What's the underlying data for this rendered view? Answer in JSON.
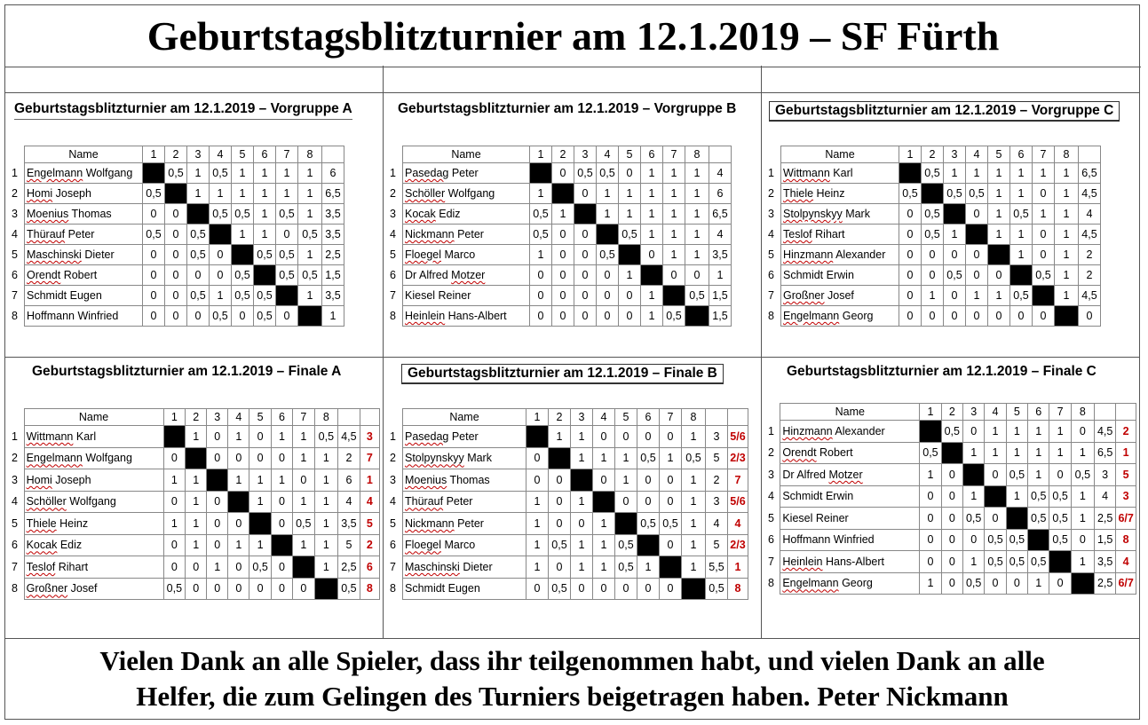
{
  "title": "Geburtstagsblitzturnier am 12.1.2019 – SF Fürth",
  "footer": {
    "line1": "Vielen Dank an alle Spieler, dass ihr teilgenommen habt, und vielen Dank an alle",
    "line2": "Helfer, die zum Gelingen des Turniers beigetragen haben.   Peter Nickmann"
  },
  "tables": [
    {
      "key": "vorgruppe-a",
      "title": "Geburtstagsblitzturnier am 12.1.2019 – Vorgruppe A",
      "name_header": "Name",
      "cols": [
        "1",
        "2",
        "3",
        "4",
        "5",
        "6",
        "7",
        "8"
      ],
      "rows": [
        {
          "n": "1",
          "name": "Engelmann Wolfgang",
          "s": [
            "X",
            "0,5",
            "1",
            "0,5",
            "1",
            "1",
            "1",
            "1"
          ],
          "total": "6",
          "rank": ""
        },
        {
          "n": "2",
          "name": "Homi Joseph",
          "s": [
            "0,5",
            "X",
            "1",
            "1",
            "1",
            "1",
            "1",
            "1"
          ],
          "total": "6,5",
          "rank": ""
        },
        {
          "n": "3",
          "name": "Moenius Thomas",
          "s": [
            "0",
            "0",
            "X",
            "0,5",
            "0,5",
            "1",
            "0,5",
            "1"
          ],
          "total": "3,5",
          "rank": ""
        },
        {
          "n": "4",
          "name": "Thürauf Peter",
          "s": [
            "0,5",
            "0",
            "0,5",
            "X",
            "1",
            "1",
            "0",
            "0,5"
          ],
          "total": "3,5",
          "rank": ""
        },
        {
          "n": "5",
          "name": "Maschinski Dieter",
          "s": [
            "0",
            "0",
            "0,5",
            "0",
            "X",
            "0,5",
            "0,5",
            "1"
          ],
          "total": "2,5",
          "rank": ""
        },
        {
          "n": "6",
          "name": "Orendt Robert",
          "s": [
            "0",
            "0",
            "0",
            "0",
            "0,5",
            "X",
            "0,5",
            "0,5"
          ],
          "total": "1,5",
          "rank": ""
        },
        {
          "n": "7",
          "name": "Schmidt Eugen",
          "s": [
            "0",
            "0",
            "0,5",
            "1",
            "0,5",
            "0,5",
            "X",
            "1"
          ],
          "total": "3,5",
          "rank": ""
        },
        {
          "n": "8",
          "name": "Hoffmann Winfried",
          "s": [
            "0",
            "0",
            "0",
            "0,5",
            "0",
            "0,5",
            "0",
            "X"
          ],
          "total": "1",
          "rank": ""
        }
      ]
    },
    {
      "key": "vorgruppe-b",
      "title": "Geburtstagsblitzturnier am 12.1.2019 – Vorgruppe B",
      "name_header": "Name",
      "cols": [
        "1",
        "2",
        "3",
        "4",
        "5",
        "6",
        "7",
        "8"
      ],
      "rows": [
        {
          "n": "1",
          "name": "Pasedag Peter",
          "s": [
            "X",
            "0",
            "0,5",
            "0,5",
            "0",
            "1",
            "1",
            "1"
          ],
          "total": "4",
          "rank": ""
        },
        {
          "n": "2",
          "name": "Schöller Wolfgang",
          "s": [
            "1",
            "X",
            "0",
            "1",
            "1",
            "1",
            "1",
            "1"
          ],
          "total": "6",
          "rank": ""
        },
        {
          "n": "3",
          "name": "Kocak Ediz",
          "s": [
            "0,5",
            "1",
            "X",
            "1",
            "1",
            "1",
            "1",
            "1"
          ],
          "total": "6,5",
          "rank": ""
        },
        {
          "n": "4",
          "name": "Nickmann Peter",
          "s": [
            "0,5",
            "0",
            "0",
            "X",
            "0,5",
            "1",
            "1",
            "1"
          ],
          "total": "4",
          "rank": ""
        },
        {
          "n": "5",
          "name": "Floegel Marco",
          "s": [
            "1",
            "0",
            "0",
            "0,5",
            "X",
            "0",
            "1",
            "1"
          ],
          "total": "3,5",
          "rank": ""
        },
        {
          "n": "6",
          "name": "Dr Alfred Motzer",
          "s": [
            "0",
            "0",
            "0",
            "0",
            "1",
            "X",
            "0",
            "0"
          ],
          "total": "1",
          "rank": ""
        },
        {
          "n": "7",
          "name": "Kiesel Reiner",
          "s": [
            "0",
            "0",
            "0",
            "0",
            "0",
            "1",
            "X",
            "0,5"
          ],
          "total": "1,5",
          "rank": ""
        },
        {
          "n": "8",
          "name": "Heinlein Hans-Albert",
          "s": [
            "0",
            "0",
            "0",
            "0",
            "0",
            "1",
            "0,5",
            "X"
          ],
          "total": "1,5",
          "rank": ""
        }
      ]
    },
    {
      "key": "vorgruppe-c",
      "title": "Geburtstagsblitzturnier am 12.1.2019 – Vorgruppe C",
      "name_header": "Name",
      "cols": [
        "1",
        "2",
        "3",
        "4",
        "5",
        "6",
        "7",
        "8"
      ],
      "rows": [
        {
          "n": "1",
          "name": "Wittmann Karl",
          "s": [
            "X",
            "0,5",
            "1",
            "1",
            "1",
            "1",
            "1",
            "1"
          ],
          "total": "6,5",
          "rank": ""
        },
        {
          "n": "2",
          "name": "Thiele Heinz",
          "s": [
            "0,5",
            "X",
            "0,5",
            "0,5",
            "1",
            "1",
            "0",
            "1"
          ],
          "total": "4,5",
          "rank": ""
        },
        {
          "n": "3",
          "name": "Stolpynskyy Mark",
          "s": [
            "0",
            "0,5",
            "X",
            "0",
            "1",
            "0,5",
            "1",
            "1"
          ],
          "total": "4",
          "rank": ""
        },
        {
          "n": "4",
          "name": "Teslof Rihart",
          "s": [
            "0",
            "0,5",
            "1",
            "X",
            "1",
            "1",
            "0",
            "1"
          ],
          "total": "4,5",
          "rank": ""
        },
        {
          "n": "5",
          "name": "Hinzmann Alexander",
          "s": [
            "0",
            "0",
            "0",
            "0",
            "X",
            "1",
            "0",
            "1"
          ],
          "total": "2",
          "rank": ""
        },
        {
          "n": "6",
          "name": "Schmidt Erwin",
          "s": [
            "0",
            "0",
            "0,5",
            "0",
            "0",
            "X",
            "0,5",
            "1"
          ],
          "total": "2",
          "rank": ""
        },
        {
          "n": "7",
          "name": "Großner Josef",
          "s": [
            "0",
            "1",
            "0",
            "1",
            "1",
            "0,5",
            "X",
            "1"
          ],
          "total": "4,5",
          "rank": ""
        },
        {
          "n": "8",
          "name": "Engelmann Georg",
          "s": [
            "0",
            "0",
            "0",
            "0",
            "0",
            "0",
            "0",
            "X"
          ],
          "total": "0",
          "rank": ""
        }
      ]
    },
    {
      "key": "finale-a",
      "title": "Geburtstagsblitzturnier am 12.1.2019 – Finale A",
      "name_header": "Name",
      "cols": [
        "1",
        "2",
        "3",
        "4",
        "5",
        "6",
        "7",
        "8"
      ],
      "rows": [
        {
          "n": "1",
          "name": "Wittmann Karl",
          "s": [
            "X",
            "1",
            "0",
            "1",
            "0",
            "1",
            "1",
            "0,5"
          ],
          "total": "4,5",
          "rank": "3"
        },
        {
          "n": "2",
          "name": "Engelmann Wolfgang",
          "s": [
            "0",
            "X",
            "0",
            "0",
            "0",
            "0",
            "1",
            "1"
          ],
          "total": "2",
          "rank": "7"
        },
        {
          "n": "3",
          "name": "Homi Joseph",
          "s": [
            "1",
            "1",
            "X",
            "1",
            "1",
            "1",
            "0",
            "1"
          ],
          "total": "6",
          "rank": "1"
        },
        {
          "n": "4",
          "name": "Schöller Wolfgang",
          "s": [
            "0",
            "1",
            "0",
            "X",
            "1",
            "0",
            "1",
            "1"
          ],
          "total": "4",
          "rank": "4"
        },
        {
          "n": "5",
          "name": "Thiele Heinz",
          "s": [
            "1",
            "1",
            "0",
            "0",
            "X",
            "0",
            "0,5",
            "1"
          ],
          "total": "3,5",
          "rank": "5"
        },
        {
          "n": "6",
          "name": "Kocak Ediz",
          "s": [
            "0",
            "1",
            "0",
            "1",
            "1",
            "X",
            "1",
            "1"
          ],
          "total": "5",
          "rank": "2"
        },
        {
          "n": "7",
          "name": "Teslof Rihart",
          "s": [
            "0",
            "0",
            "1",
            "0",
            "0,5",
            "0",
            "X",
            "1"
          ],
          "total": "2,5",
          "rank": "6"
        },
        {
          "n": "8",
          "name": "Großner Josef",
          "s": [
            "0,5",
            "0",
            "0",
            "0",
            "0",
            "0",
            "0",
            "X"
          ],
          "total": "0,5",
          "rank": "8"
        }
      ]
    },
    {
      "key": "finale-b",
      "title": "Geburtstagsblitzturnier am 12.1.2019 – Finale B",
      "name_header": "Name",
      "cols": [
        "1",
        "2",
        "3",
        "4",
        "5",
        "6",
        "7",
        "8"
      ],
      "rows": [
        {
          "n": "1",
          "name": "Pasedag Peter",
          "s": [
            "X",
            "1",
            "1",
            "0",
            "0",
            "0",
            "0",
            "1"
          ],
          "total": "3",
          "rank": "5/6"
        },
        {
          "n": "2",
          "name": "Stolpynskyy Mark",
          "s": [
            "0",
            "X",
            "1",
            "1",
            "1",
            "0,5",
            "1",
            "0,5"
          ],
          "total": "5",
          "rank": "2/3"
        },
        {
          "n": "3",
          "name": "Moenius Thomas",
          "s": [
            "0",
            "0",
            "X",
            "0",
            "1",
            "0",
            "0",
            "1"
          ],
          "total": "2",
          "rank": "7"
        },
        {
          "n": "4",
          "name": "Thürauf Peter",
          "s": [
            "1",
            "0",
            "1",
            "X",
            "0",
            "0",
            "0",
            "1"
          ],
          "total": "3",
          "rank": "5/6"
        },
        {
          "n": "5",
          "name": "Nickmann Peter",
          "s": [
            "1",
            "0",
            "0",
            "1",
            "X",
            "0,5",
            "0,5",
            "1"
          ],
          "total": "4",
          "rank": "4"
        },
        {
          "n": "6",
          "name": "Floegel Marco",
          "s": [
            "1",
            "0,5",
            "1",
            "1",
            "0,5",
            "X",
            "0",
            "1"
          ],
          "total": "5",
          "rank": "2/3"
        },
        {
          "n": "7",
          "name": "Maschinski Dieter",
          "s": [
            "1",
            "0",
            "1",
            "1",
            "0,5",
            "1",
            "X",
            "1"
          ],
          "total": "5,5",
          "rank": "1"
        },
        {
          "n": "8",
          "name": "Schmidt Eugen",
          "s": [
            "0",
            "0,5",
            "0",
            "0",
            "0",
            "0",
            "0",
            "X"
          ],
          "total": "0,5",
          "rank": "8"
        }
      ]
    },
    {
      "key": "finale-c",
      "title": "Geburtstagsblitzturnier am 12.1.2019 – Finale C",
      "name_header": "Name",
      "cols": [
        "1",
        "2",
        "3",
        "4",
        "5",
        "6",
        "7",
        "8"
      ],
      "rows": [
        {
          "n": "1",
          "name": "Hinzmann Alexander",
          "s": [
            "X",
            "0,5",
            "0",
            "1",
            "1",
            "1",
            "1",
            "0"
          ],
          "total": "4,5",
          "rank": "2"
        },
        {
          "n": "2",
          "name": "Orendt Robert",
          "s": [
            "0,5",
            "X",
            "1",
            "1",
            "1",
            "1",
            "1",
            "1"
          ],
          "total": "6,5",
          "rank": "1"
        },
        {
          "n": "3",
          "name": "Dr Alfred Motzer",
          "s": [
            "1",
            "0",
            "X",
            "0",
            "0,5",
            "1",
            "0",
            "0,5"
          ],
          "total": "3",
          "rank": "5"
        },
        {
          "n": "4",
          "name": "Schmidt Erwin",
          "s": [
            "0",
            "0",
            "1",
            "X",
            "1",
            "0,5",
            "0,5",
            "1"
          ],
          "total": "4",
          "rank": "3"
        },
        {
          "n": "5",
          "name": "Kiesel Reiner",
          "s": [
            "0",
            "0",
            "0,5",
            "0",
            "X",
            "0,5",
            "0,5",
            "1"
          ],
          "total": "2,5",
          "rank": "6/7"
        },
        {
          "n": "6",
          "name": "Hoffmann Winfried",
          "s": [
            "0",
            "0",
            "0",
            "0,5",
            "0,5",
            "X",
            "0,5",
            "0"
          ],
          "total": "1,5",
          "rank": "8"
        },
        {
          "n": "7",
          "name": "Heinlein Hans-Albert",
          "s": [
            "0",
            "0",
            "1",
            "0,5",
            "0,5",
            "0,5",
            "X",
            "1"
          ],
          "total": "3,5",
          "rank": "4"
        },
        {
          "n": "8",
          "name": "Engelmann Georg",
          "s": [
            "1",
            "0",
            "0,5",
            "0",
            "0",
            "1",
            "0",
            "X"
          ],
          "total": "2,5",
          "rank": "6/7"
        }
      ]
    }
  ]
}
